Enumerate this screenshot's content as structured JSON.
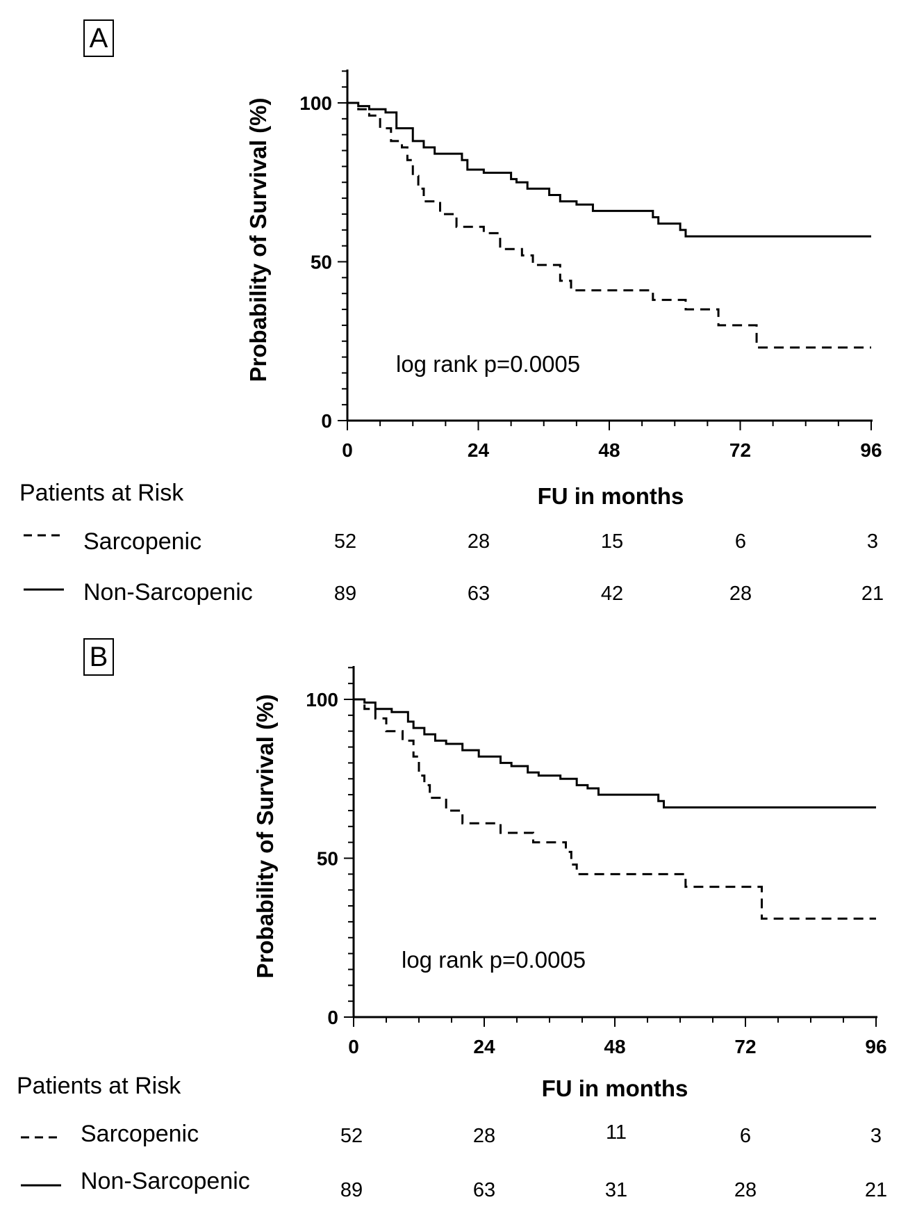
{
  "chart_data": [
    {
      "type": "line",
      "panel_label": "A",
      "ylabel": "Probability of Survival (%)",
      "xlabel": "FU in months",
      "xlim": [
        0,
        96
      ],
      "ylim": [
        0,
        110
      ],
      "x_ticks": [
        "0",
        "24",
        "48",
        "72",
        "96"
      ],
      "y_ticks": [
        "0",
        "50",
        "100"
      ],
      "annotation": "log rank p=0.0005",
      "series": [
        {
          "name": "Sarcopenic",
          "style": "dashed",
          "points": [
            [
              0,
              100
            ],
            [
              2,
              98
            ],
            [
              4,
              96
            ],
            [
              6,
              92
            ],
            [
              8,
              88
            ],
            [
              10,
              86
            ],
            [
              11,
              82
            ],
            [
              12,
              77
            ],
            [
              13,
              73
            ],
            [
              14,
              69
            ],
            [
              17,
              65
            ],
            [
              20,
              61
            ],
            [
              25,
              59
            ],
            [
              28,
              54
            ],
            [
              32,
              52
            ],
            [
              34,
              49
            ],
            [
              39,
              44
            ],
            [
              41,
              41
            ],
            [
              56,
              38
            ],
            [
              62,
              35
            ],
            [
              68,
              30
            ],
            [
              75,
              23
            ],
            [
              96,
              23
            ]
          ]
        },
        {
          "name": "Non-Sarcopenic",
          "style": "solid",
          "points": [
            [
              0,
              100
            ],
            [
              2,
              99
            ],
            [
              4,
              98
            ],
            [
              7,
              97
            ],
            [
              9,
              92
            ],
            [
              12,
              88
            ],
            [
              14,
              86
            ],
            [
              16,
              84
            ],
            [
              21,
              82
            ],
            [
              22,
              79
            ],
            [
              25,
              78
            ],
            [
              30,
              76
            ],
            [
              31,
              75
            ],
            [
              33,
              73
            ],
            [
              37,
              71
            ],
            [
              39,
              69
            ],
            [
              42,
              68
            ],
            [
              45,
              66
            ],
            [
              56,
              64
            ],
            [
              57,
              62
            ],
            [
              61,
              60
            ],
            [
              62,
              58
            ],
            [
              96,
              58
            ]
          ]
        }
      ],
      "risk_table": {
        "title": "Patients at Risk",
        "times": [
          "0",
          "24",
          "48",
          "72",
          "96"
        ],
        "rows": [
          {
            "label": "Sarcopenic",
            "style": "dashed",
            "values": [
              "52",
              "28",
              "15",
              "6",
              "3"
            ]
          },
          {
            "label": "Non-Sarcopenic",
            "style": "solid",
            "values": [
              "89",
              "63",
              "42",
              "28",
              "21"
            ]
          }
        ]
      }
    },
    {
      "type": "line",
      "panel_label": "B",
      "ylabel": "Probability of Survival (%)",
      "xlabel": "FU in months",
      "xlim": [
        0,
        96
      ],
      "ylim": [
        0,
        110
      ],
      "x_ticks": [
        "0",
        "24",
        "48",
        "72",
        "96"
      ],
      "y_ticks": [
        "0",
        "50",
        "100"
      ],
      "annotation": "log rank p=0.0005",
      "series": [
        {
          "name": "Sarcopenic",
          "style": "dashed",
          "points": [
            [
              0,
              100
            ],
            [
              2,
              97
            ],
            [
              4,
              94
            ],
            [
              6,
              90
            ],
            [
              9,
              87
            ],
            [
              11,
              82
            ],
            [
              12,
              76
            ],
            [
              13,
              73
            ],
            [
              14,
              69
            ],
            [
              17,
              65
            ],
            [
              20,
              61
            ],
            [
              27,
              58
            ],
            [
              33,
              55
            ],
            [
              39,
              52
            ],
            [
              40,
              48
            ],
            [
              41,
              45
            ],
            [
              61,
              41
            ],
            [
              75,
              31
            ],
            [
              96,
              31
            ]
          ]
        },
        {
          "name": "Non-Sarcopenic",
          "style": "solid",
          "points": [
            [
              0,
              100
            ],
            [
              2,
              99
            ],
            [
              4,
              97
            ],
            [
              7,
              96
            ],
            [
              10,
              93
            ],
            [
              11,
              91
            ],
            [
              13,
              89
            ],
            [
              15,
              87
            ],
            [
              17,
              86
            ],
            [
              20,
              84
            ],
            [
              23,
              82
            ],
            [
              27,
              80
            ],
            [
              29,
              79
            ],
            [
              32,
              77
            ],
            [
              34,
              76
            ],
            [
              38,
              75
            ],
            [
              41,
              73
            ],
            [
              43,
              72
            ],
            [
              45,
              70
            ],
            [
              56,
              68
            ],
            [
              57,
              66
            ],
            [
              96,
              66
            ]
          ]
        }
      ],
      "risk_table": {
        "title": "Patients at Risk",
        "times": [
          "0",
          "24",
          "48",
          "72",
          "96"
        ],
        "rows": [
          {
            "label": "Sarcopenic",
            "style": "dashed",
            "values": [
              "52",
              "28",
              "11",
              "6",
              "3"
            ]
          },
          {
            "label": "Non-Sarcopenic",
            "style": "solid",
            "values": [
              "89",
              "63",
              "31",
              "28",
              "21"
            ]
          }
        ]
      }
    }
  ]
}
